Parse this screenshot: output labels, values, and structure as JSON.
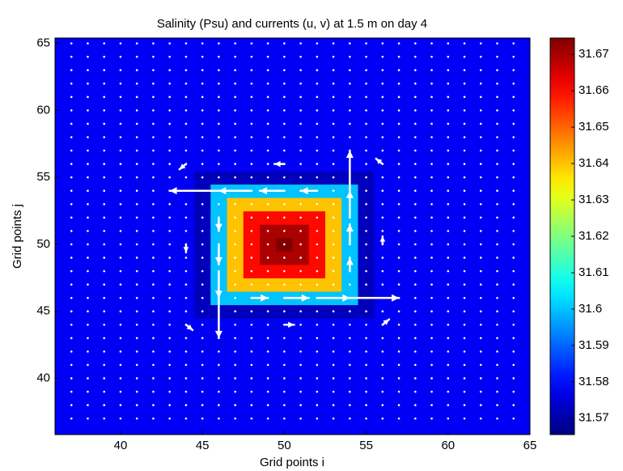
{
  "chart_data": {
    "type": "contour",
    "title": "Salinity (Psu) and currents (u, v) at 1.5 m on day 4",
    "xlabel": "Grid points i",
    "ylabel": "Grid points j",
    "xlim": [
      36,
      65
    ],
    "ylim": [
      35.8,
      65.4
    ],
    "xticks": [
      40,
      45,
      50,
      55,
      60,
      65
    ],
    "yticks": [
      40,
      45,
      50,
      55,
      60,
      65
    ],
    "colormap": "jet",
    "x": [
      44,
      45,
      46,
      47,
      48,
      49,
      50,
      51,
      52,
      53,
      54,
      55,
      56
    ],
    "y": [
      44,
      45,
      46,
      47,
      48,
      49,
      50,
      51,
      52,
      53,
      54,
      55,
      56
    ],
    "z": [
      [
        31.578,
        31.578,
        31.578,
        31.578,
        31.578,
        31.578,
        31.578,
        31.578,
        31.578,
        31.578,
        31.578,
        31.578,
        31.578
      ],
      [
        31.578,
        31.572,
        31.572,
        31.572,
        31.572,
        31.572,
        31.572,
        31.572,
        31.572,
        31.572,
        31.572,
        31.572,
        31.578
      ],
      [
        31.578,
        31.572,
        31.6,
        31.6,
        31.6,
        31.6,
        31.6,
        31.6,
        31.6,
        31.6,
        31.6,
        31.572,
        31.578
      ],
      [
        31.578,
        31.572,
        31.6,
        31.64,
        31.64,
        31.64,
        31.64,
        31.64,
        31.64,
        31.64,
        31.6,
        31.572,
        31.578
      ],
      [
        31.578,
        31.572,
        31.6,
        31.64,
        31.66,
        31.66,
        31.66,
        31.66,
        31.66,
        31.64,
        31.6,
        31.572,
        31.578
      ],
      [
        31.578,
        31.572,
        31.6,
        31.64,
        31.66,
        31.67,
        31.67,
        31.67,
        31.66,
        31.64,
        31.6,
        31.572,
        31.578
      ],
      [
        31.578,
        31.572,
        31.6,
        31.64,
        31.66,
        31.67,
        31.675,
        31.67,
        31.66,
        31.64,
        31.6,
        31.572,
        31.578
      ],
      [
        31.578,
        31.572,
        31.6,
        31.64,
        31.66,
        31.67,
        31.67,
        31.67,
        31.66,
        31.64,
        31.6,
        31.572,
        31.578
      ],
      [
        31.578,
        31.572,
        31.6,
        31.64,
        31.66,
        31.66,
        31.66,
        31.66,
        31.66,
        31.64,
        31.6,
        31.572,
        31.578
      ],
      [
        31.578,
        31.572,
        31.6,
        31.64,
        31.64,
        31.64,
        31.64,
        31.64,
        31.64,
        31.64,
        31.6,
        31.572,
        31.578
      ],
      [
        31.578,
        31.572,
        31.6,
        31.6,
        31.6,
        31.6,
        31.6,
        31.6,
        31.6,
        31.6,
        31.6,
        31.572,
        31.578
      ],
      [
        31.578,
        31.572,
        31.572,
        31.572,
        31.572,
        31.572,
        31.572,
        31.572,
        31.572,
        31.572,
        31.572,
        31.572,
        31.578
      ],
      [
        31.578,
        31.578,
        31.578,
        31.578,
        31.578,
        31.578,
        31.578,
        31.578,
        31.578,
        31.578,
        31.578,
        31.578,
        31.578
      ]
    ],
    "colorbar": {
      "ylim": [
        31.5655,
        31.6745
      ],
      "yticks": [
        31.57,
        31.58,
        31.59,
        31.6,
        31.61,
        31.62,
        31.63,
        31.64,
        31.65,
        31.66,
        31.67
      ]
    },
    "quiver": {
      "color": "#ffffff",
      "x": [
        52,
        50,
        48,
        46,
        46,
        46,
        46,
        46,
        48,
        50,
        52,
        54,
        54,
        54,
        54,
        54,
        50,
        44,
        50,
        56,
        44,
        44,
        56,
        56
      ],
      "y": [
        54,
        54,
        54,
        54,
        52,
        50,
        48,
        46,
        46,
        46,
        46,
        46,
        48,
        50,
        52,
        54,
        56,
        50,
        44,
        50,
        56,
        44,
        44,
        56
      ],
      "u": [
        -1,
        -1.5,
        -2,
        -3,
        0,
        0,
        0,
        0,
        1,
        1.5,
        2,
        3,
        0,
        0,
        0,
        0,
        -0.6,
        0,
        0.6,
        0,
        -0.4,
        0.4,
        0.4,
        -0.4
      ],
      "v": [
        0,
        0,
        0,
        0,
        -1,
        -1.5,
        -2,
        -3,
        0,
        0,
        0,
        0,
        1,
        1.5,
        2,
        3,
        0,
        -0.6,
        0,
        0.6,
        -0.4,
        -0.4,
        0.4,
        0.4
      ]
    }
  }
}
